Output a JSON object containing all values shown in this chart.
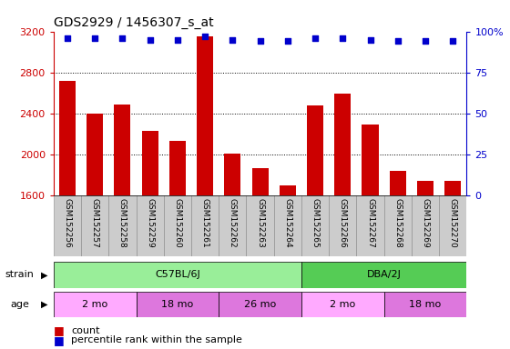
{
  "title": "GDS2929 / 1456307_s_at",
  "samples": [
    "GSM152256",
    "GSM152257",
    "GSM152258",
    "GSM152259",
    "GSM152260",
    "GSM152261",
    "GSM152262",
    "GSM152263",
    "GSM152264",
    "GSM152265",
    "GSM152266",
    "GSM152267",
    "GSM152268",
    "GSM152269",
    "GSM152270"
  ],
  "counts": [
    2720,
    2400,
    2490,
    2230,
    2130,
    3150,
    2010,
    1870,
    1700,
    2480,
    2590,
    2290,
    1840,
    1740,
    1740
  ],
  "percentiles": [
    96,
    96,
    96,
    95,
    95,
    97,
    95,
    94,
    94,
    96,
    96,
    95,
    94,
    94,
    94
  ],
  "ylim_left": [
    1600,
    3200
  ],
  "ylim_right": [
    0,
    100
  ],
  "yticks_left": [
    1600,
    2000,
    2400,
    2800,
    3200
  ],
  "yticks_right": [
    0,
    25,
    50,
    75,
    100
  ],
  "bar_color": "#cc0000",
  "dot_color": "#0000cc",
  "strain_labels": [
    {
      "text": "C57BL/6J",
      "start": 0,
      "end": 9,
      "color": "#99ee99"
    },
    {
      "text": "DBA/2J",
      "start": 9,
      "end": 15,
      "color": "#55cc55"
    }
  ],
  "age_labels": [
    {
      "text": "2 mo",
      "start": 0,
      "end": 3,
      "color": "#ffaaff"
    },
    {
      "text": "18 mo",
      "start": 3,
      "end": 6,
      "color": "#dd77dd"
    },
    {
      "text": "26 mo",
      "start": 6,
      "end": 9,
      "color": "#dd77dd"
    },
    {
      "text": "2 mo",
      "start": 9,
      "end": 12,
      "color": "#ffaaff"
    },
    {
      "text": "18 mo",
      "start": 12,
      "end": 15,
      "color": "#dd77dd"
    }
  ],
  "legend_count_label": "count",
  "legend_pct_label": "percentile rank within the sample",
  "strain_row_label": "strain",
  "age_row_label": "age",
  "background_color": "#ffffff",
  "left_axis_color": "#cc0000",
  "right_axis_color": "#0000cc",
  "tick_bg_color": "#cccccc",
  "grid_dotted_values": [
    2000,
    2400,
    2800
  ]
}
